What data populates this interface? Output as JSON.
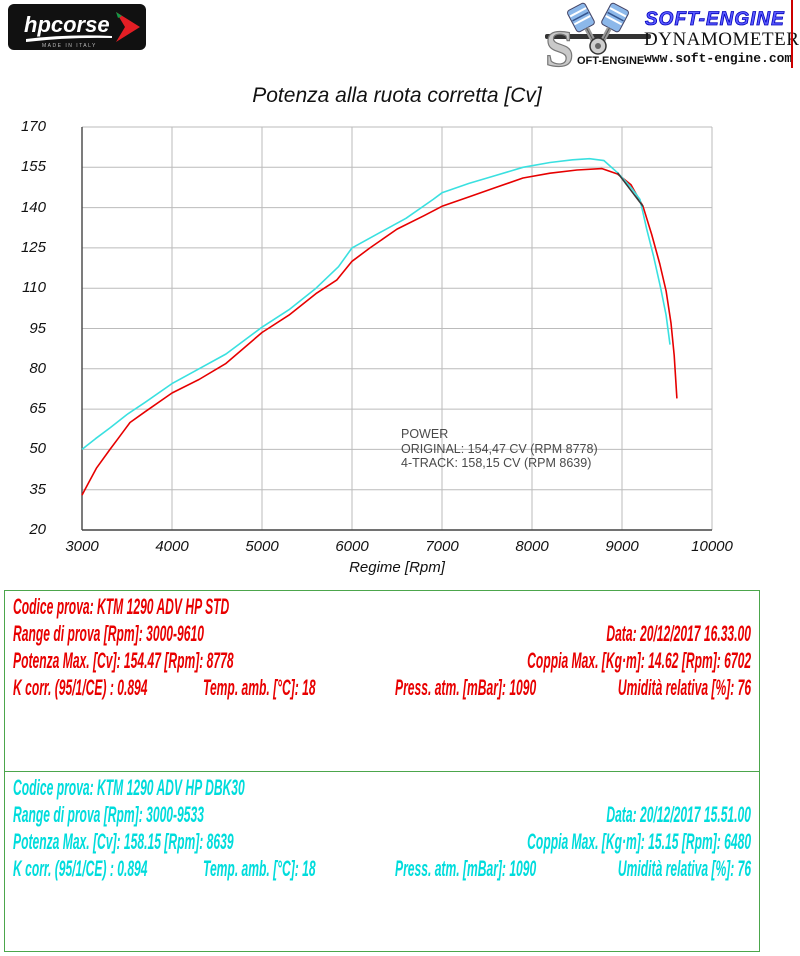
{
  "header": {
    "hpcorse": {
      "brand": "hpcorse",
      "made_in": "MADE IN ITALY"
    },
    "softengine": {
      "logo_s": "S",
      "logo_rest": "OFT-ENGINE",
      "name": "SOFT-ENGINE",
      "subtitle": "DYNAMOMETERS",
      "url": "www.soft-engine.com"
    }
  },
  "colors": {
    "original_curve": "#e60000",
    "four_track_curve": "#3ae0e0",
    "overlap": "#3a3a3a",
    "grid": "#bbbbbb",
    "axis": "#444444",
    "box_border": "#4ca64c",
    "red_text": "#e80000",
    "cyan_text": "#00dcdc"
  },
  "chart_data": {
    "type": "line",
    "title": "Potenza alla ruota corretta [Cv]",
    "xlabel": "Regime [Rpm]",
    "ylabel": "",
    "xlim": [
      3000,
      10000
    ],
    "ylim": [
      20,
      170
    ],
    "x_ticks": [
      3000,
      4000,
      5000,
      6000,
      7000,
      8000,
      9000,
      10000
    ],
    "y_ticks": [
      170,
      155,
      140,
      125,
      110,
      95,
      80,
      65,
      50,
      35,
      20
    ],
    "grid": true,
    "legend_position": "none",
    "series": [
      {
        "name": "ORIGINAL (KTM 1290 ADV HP STD)",
        "color": "#e60000",
        "points": [
          [
            3000,
            33
          ],
          [
            3080,
            38
          ],
          [
            3160,
            43
          ],
          [
            3311,
            50
          ],
          [
            3400,
            54
          ],
          [
            3533,
            60
          ],
          [
            3700,
            64
          ],
          [
            4000,
            71
          ],
          [
            4300,
            76
          ],
          [
            4600,
            82
          ],
          [
            5000,
            93.5
          ],
          [
            5300,
            100
          ],
          [
            5600,
            108
          ],
          [
            5830,
            113
          ],
          [
            6000,
            120
          ],
          [
            6200,
            125
          ],
          [
            6500,
            132
          ],
          [
            6800,
            137
          ],
          [
            7000,
            140.5
          ],
          [
            7300,
            144
          ],
          [
            7600,
            147.5
          ],
          [
            7900,
            151
          ],
          [
            8200,
            152.8
          ],
          [
            8500,
            154
          ],
          [
            8778,
            154.5
          ],
          [
            8950,
            152.5
          ],
          [
            9100,
            148.5
          ],
          [
            9233,
            140.5
          ],
          [
            9330,
            130
          ],
          [
            9420,
            119
          ],
          [
            9490,
            109
          ],
          [
            9545,
            97
          ],
          [
            9580,
            85
          ],
          [
            9610,
            69
          ]
        ]
      },
      {
        "name": "4-TRACK (KTM 1290 ADV HP DBK30)",
        "color": "#3ae0e0",
        "points": [
          [
            3000,
            50
          ],
          [
            3150,
            54
          ],
          [
            3311,
            58
          ],
          [
            3500,
            63
          ],
          [
            3700,
            67.5
          ],
          [
            4000,
            74.5
          ],
          [
            4300,
            80
          ],
          [
            4600,
            85.5
          ],
          [
            5000,
            95.5
          ],
          [
            5300,
            102
          ],
          [
            5600,
            110
          ],
          [
            5850,
            118
          ],
          [
            6000,
            125
          ],
          [
            6300,
            130.5
          ],
          [
            6600,
            136
          ],
          [
            6900,
            143
          ],
          [
            7000,
            145.5
          ],
          [
            7300,
            149
          ],
          [
            7600,
            152
          ],
          [
            7900,
            155
          ],
          [
            8200,
            156.8
          ],
          [
            8450,
            157.8
          ],
          [
            8639,
            158.2
          ],
          [
            8800,
            157.5
          ],
          [
            8950,
            153
          ],
          [
            9100,
            147.5
          ],
          [
            9200,
            143
          ],
          [
            9274,
            132
          ],
          [
            9350,
            122
          ],
          [
            9430,
            110
          ],
          [
            9490,
            100
          ],
          [
            9533,
            89
          ]
        ]
      }
    ],
    "overlap_segment": {
      "color": "#3a3a3a",
      "points": [
        [
          8950,
          153
        ],
        [
          9233,
          140.5
        ]
      ]
    },
    "annotation": {
      "lines": [
        "POWER",
        "ORIGINAL: 154,47 CV (RPM 8778)",
        "4-TRACK: 158,15 CV (RPM 8639)"
      ]
    }
  },
  "results": [
    {
      "color": "#e80000",
      "codice": "Codice prova: KTM 1290 ADV HP STD",
      "range": "Range di prova [Rpm]: 3000-9610",
      "data": "Data: 20/12/2017  16.33.00",
      "potenza": "Potenza Max. [Cv]: 154.47  [Rpm]: 8778",
      "coppia": "Coppia Max. [Kg·m]: 14.62  [Rpm]: 6702",
      "kcorr": "K corr. (95/1/CE) : 0.894",
      "temp": "Temp. amb. [°C]: 18",
      "press": "Press. atm. [mBar]: 1090",
      "umidita": "Umidità relativa [%]: 76"
    },
    {
      "color": "#00dcdc",
      "codice": "Codice prova: KTM 1290 ADV HP DBK30",
      "range": "Range di prova [Rpm]: 3000-9533",
      "data": "Data: 20/12/2017  15.51.00",
      "potenza": "Potenza Max. [Cv]: 158.15  [Rpm]: 8639",
      "coppia": "Coppia Max. [Kg·m]: 15.15  [Rpm]: 6480",
      "kcorr": "K corr. (95/1/CE) : 0.894",
      "temp": "Temp. amb. [°C]: 18",
      "press": "Press. atm. [mBar]: 1090",
      "umidita": "Umidità relativa [%]: 76"
    }
  ]
}
